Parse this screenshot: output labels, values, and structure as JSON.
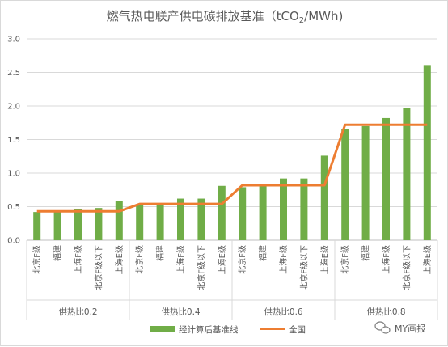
{
  "chart_data": {
    "type": "bar",
    "title_main": "燃气热电联产供电碳排放基准（tCO",
    "title_sub": "2",
    "title_tail": "/MWh)",
    "ylim": [
      0,
      3.0
    ],
    "yticks": [
      "0.0",
      "0.5",
      "1.0",
      "1.5",
      "2.0",
      "2.5",
      "3.0"
    ],
    "groups": [
      {
        "label": "供热比0.2",
        "categories": [
          "北京F级",
          "福建",
          "上海F级",
          "北京F级以下",
          "上海E级"
        ],
        "values": [
          0.42,
          0.43,
          0.47,
          0.48,
          0.59
        ],
        "national": 0.43
      },
      {
        "label": "供热比0.4",
        "categories": [
          "北京F级",
          "福建",
          "上海F级",
          "北京F级以下",
          "上海E级"
        ],
        "values": [
          0.52,
          0.54,
          0.62,
          0.62,
          0.81
        ],
        "national": 0.54
      },
      {
        "label": "供热比0.6",
        "categories": [
          "北京F级",
          "福建",
          "上海F级",
          "北京F级以下",
          "上海E级"
        ],
        "values": [
          0.79,
          0.81,
          0.92,
          0.92,
          1.26
        ],
        "national": 0.82
      },
      {
        "label": "供热比0.8",
        "categories": [
          "北京F级",
          "福建",
          "上海F级",
          "北京F级以下",
          "上海E级"
        ],
        "values": [
          1.66,
          1.7,
          1.82,
          1.97,
          2.61
        ],
        "national": 1.72
      }
    ],
    "series": [
      {
        "name": "经计算后基准线",
        "kind": "bar",
        "color": "#70ad47"
      },
      {
        "name": "全国",
        "kind": "line",
        "color": "#ed7d31"
      }
    ],
    "legend_position": "bottom",
    "grid": true
  },
  "watermark": {
    "icon": "wechat-icon",
    "text": "MY画报"
  }
}
